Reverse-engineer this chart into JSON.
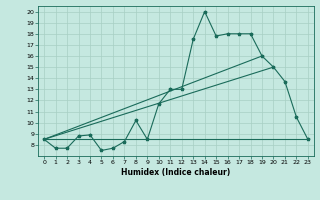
{
  "title": "",
  "xlabel": "Humidex (Indice chaleur)",
  "xlim": [
    -0.5,
    23.5
  ],
  "ylim": [
    7,
    20.5
  ],
  "yticks": [
    8,
    9,
    10,
    11,
    12,
    13,
    14,
    15,
    16,
    17,
    18,
    19,
    20
  ],
  "xticks": [
    0,
    1,
    2,
    3,
    4,
    5,
    6,
    7,
    8,
    9,
    10,
    11,
    12,
    13,
    14,
    15,
    16,
    17,
    18,
    19,
    20,
    21,
    22,
    23
  ],
  "bg_color": "#c5e8e0",
  "line_color": "#1a6b5a",
  "grid_color": "#a8cfc4",
  "line1_x": [
    0,
    1,
    2,
    3,
    4,
    5,
    6,
    7,
    8,
    9,
    10,
    11,
    12,
    13,
    14,
    15,
    16,
    17,
    18,
    19,
    20,
    21,
    22,
    23
  ],
  "line1_y": [
    8.5,
    7.7,
    7.7,
    8.8,
    8.9,
    7.5,
    7.7,
    8.3,
    10.2,
    8.5,
    11.7,
    13.0,
    13.0,
    17.5,
    20.0,
    17.8,
    18.0,
    18.0,
    18.0,
    16.0,
    15.0,
    13.7,
    10.5,
    8.5
  ],
  "line2_x": [
    0,
    23
  ],
  "line2_y": [
    8.5,
    8.5
  ],
  "line3_x": [
    0,
    20
  ],
  "line3_y": [
    8.5,
    15.0
  ],
  "line4_x": [
    0,
    19
  ],
  "line4_y": [
    8.5,
    16.0
  ]
}
